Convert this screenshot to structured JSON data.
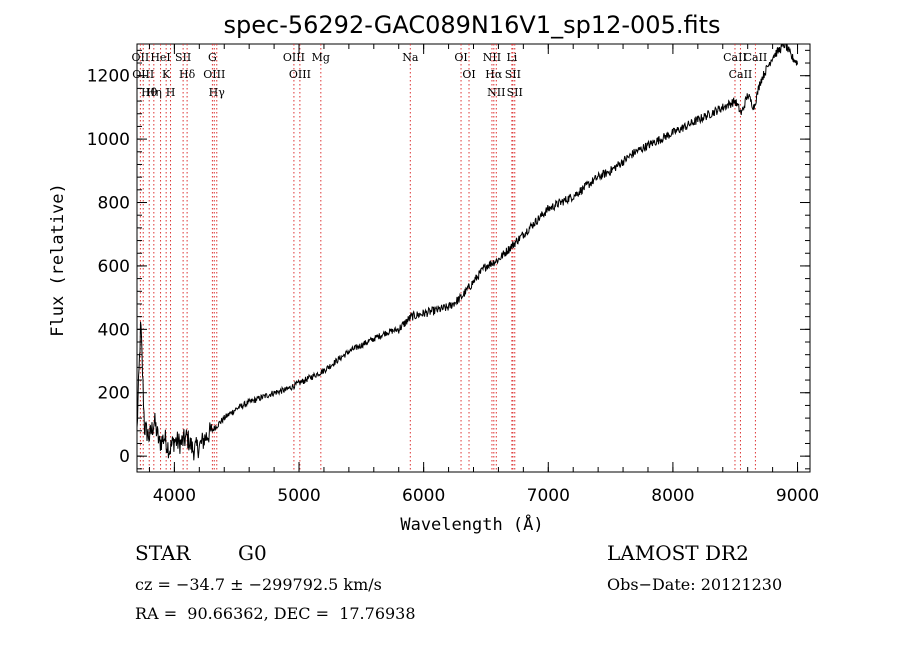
{
  "chart_data": {
    "type": "line",
    "title": "spec-56292-GAC089N16V1_sp12-005.fits",
    "xlabel": "Wavelength (Å)",
    "ylabel": "Flux (relative)",
    "xlim": [
      3700,
      9100
    ],
    "ylim": [
      -50,
      1300
    ],
    "xticks": [
      4000,
      5000,
      6000,
      7000,
      8000,
      9000
    ],
    "yticks": [
      0,
      200,
      400,
      600,
      800,
      1000,
      1200
    ],
    "grid": false,
    "series": [
      {
        "x": [
          3700,
          3730,
          3760,
          3800,
          3840,
          3880,
          3920,
          3960,
          4000,
          4050,
          4100,
          4150,
          4200,
          4250,
          4300,
          4350,
          4400,
          4500,
          4600,
          4700,
          4800,
          4900,
          5000,
          5100,
          5200,
          5300,
          5400,
          5500,
          5600,
          5700,
          5800,
          5900,
          6000,
          6100,
          6200,
          6300,
          6400,
          6500,
          6600,
          6700,
          6800,
          6900,
          7000,
          7100,
          7200,
          7300,
          7400,
          7500,
          7600,
          7700,
          7800,
          7900,
          8000,
          8100,
          8200,
          8300,
          8400,
          8500,
          8550,
          8600,
          8650,
          8700,
          8750,
          8800,
          8850,
          8900,
          8950,
          9000
        ],
        "y": [
          80,
          420,
          90,
          60,
          110,
          40,
          60,
          20,
          50,
          40,
          60,
          20,
          30,
          60,
          80,
          100,
          120,
          150,
          170,
          185,
          200,
          210,
          230,
          250,
          270,
          300,
          330,
          350,
          370,
          390,
          400,
          440,
          450,
          460,
          470,
          500,
          550,
          600,
          620,
          660,
          700,
          740,
          780,
          800,
          820,
          850,
          880,
          900,
          930,
          960,
          980,
          1000,
          1020,
          1040,
          1060,
          1080,
          1100,
          1120,
          1080,
          1140,
          1100,
          1180,
          1220,
          1260,
          1280,
          1300,
          1260,
          1240
        ]
      }
    ],
    "lines": [
      {
        "label": "Hθ",
        "wave": 3798
      },
      {
        "label": "OII",
        "wave": 3727
      },
      {
        "label": "OIII",
        "wave": 3750
      },
      {
        "label": "K",
        "wave": 3934
      },
      {
        "label": "H",
        "wave": 3969
      },
      {
        "label": "Hη",
        "wave": 3835
      },
      {
        "label": "HeI",
        "wave": 3889
      },
      {
        "label": "SII",
        "wave": 4070
      },
      {
        "label": "Hδ",
        "wave": 4102
      },
      {
        "label": "OIII",
        "wave": 4320
      },
      {
        "label": "Hγ",
        "wave": 4340
      },
      {
        "label": "G",
        "wave": 4305
      },
      {
        "label": "OIII",
        "wave": 4959
      },
      {
        "label": "OIII",
        "wave": 5007
      },
      {
        "label": "Mg",
        "wave": 5175
      },
      {
        "label": "Na",
        "wave": 5893
      },
      {
        "label": "OI",
        "wave": 6300
      },
      {
        "label": "OI",
        "wave": 6364
      },
      {
        "label": "NII",
        "wave": 6548
      },
      {
        "label": "Hα",
        "wave": 6563
      },
      {
        "label": "NII",
        "wave": 6583
      },
      {
        "label": "SII",
        "wave": 6716
      },
      {
        "label": "SII",
        "wave": 6731
      },
      {
        "label": "Li",
        "wave": 6708
      },
      {
        "label": "CaII",
        "wave": 8498
      },
      {
        "label": "CaII",
        "wave": 8542
      },
      {
        "label": "CaII",
        "wave": 8662
      }
    ]
  },
  "info": {
    "class_label": "STAR",
    "subclass": "G0",
    "survey": "LAMOST DR2",
    "redshift": "cz = −34.7 ± −299792.5 km/s",
    "obs_date": "Obs−Date: 20121230",
    "coords": "RA =  90.66362, DEC =  17.76938"
  }
}
